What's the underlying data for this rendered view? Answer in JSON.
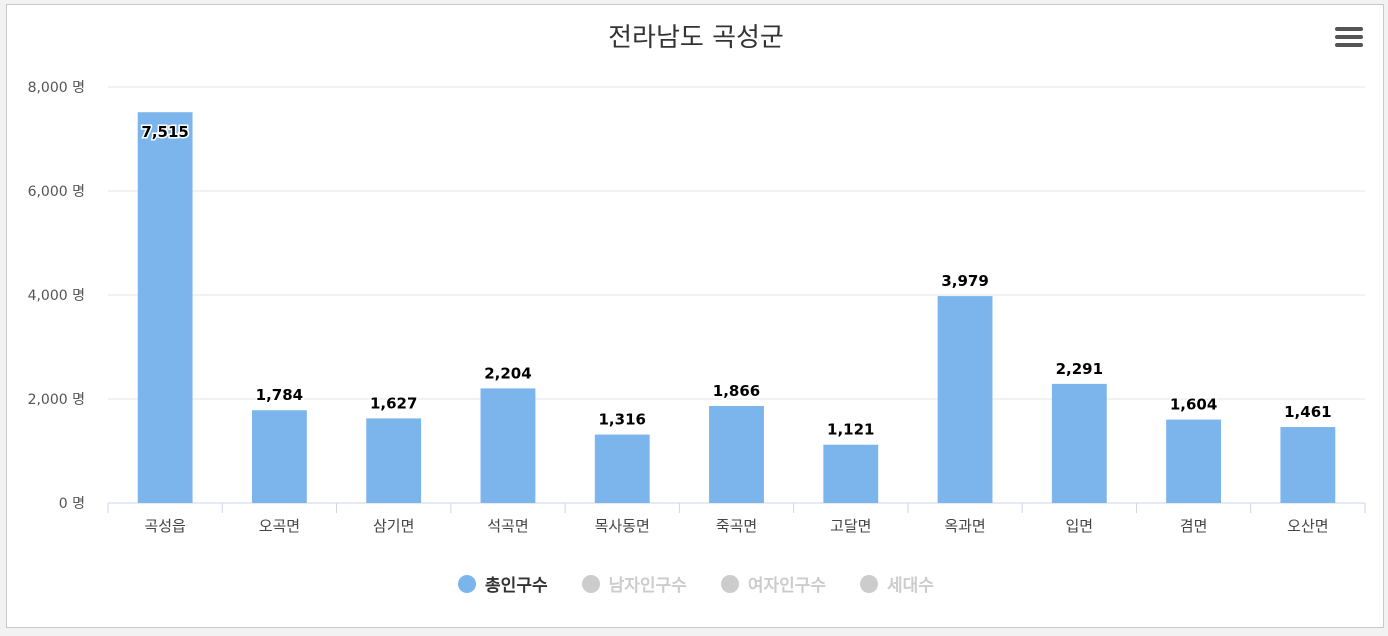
{
  "chart_data": {
    "type": "bar",
    "title": "전라남도 곡성군",
    "categories": [
      "곡성읍",
      "오곡면",
      "삼기면",
      "석곡면",
      "목사동면",
      "죽곡면",
      "고달면",
      "옥과면",
      "입면",
      "겸면",
      "오산면"
    ],
    "series": [
      {
        "name": "총인구수",
        "values": [
          7515,
          1784,
          1627,
          2204,
          1316,
          1866,
          1121,
          3979,
          2291,
          1604,
          1461
        ],
        "color": "#7cb5ec",
        "visible": true
      },
      {
        "name": "남자인구수",
        "visible": false,
        "color": "#cccccc"
      },
      {
        "name": "여자인구수",
        "visible": false,
        "color": "#cccccc"
      },
      {
        "name": "세대수",
        "visible": false,
        "color": "#cccccc"
      }
    ],
    "value_labels": [
      "7,515",
      "1,784",
      "1,627",
      "2,204",
      "1,316",
      "1,866",
      "1,121",
      "3,979",
      "2,291",
      "1,604",
      "1,461"
    ],
    "yticks": [
      "0 명",
      "2,000 명",
      "4,000 명",
      "6,000 명",
      "8,000 명"
    ],
    "ylim": [
      0,
      8000
    ],
    "grid": true,
    "legend_position": "bottom-center"
  },
  "legend": [
    {
      "label": "총인구수",
      "color": "#7cb5ec",
      "active": true
    },
    {
      "label": "남자인구수",
      "color": "#cccccc",
      "active": false
    },
    {
      "label": "여자인구수",
      "color": "#cccccc",
      "active": false
    },
    {
      "label": "세대수",
      "color": "#cccccc",
      "active": false
    }
  ],
  "menu_icon": "hamburger-menu-icon"
}
